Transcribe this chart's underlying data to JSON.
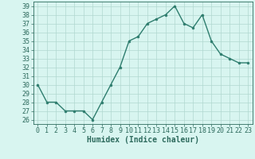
{
  "x": [
    0,
    1,
    2,
    3,
    4,
    5,
    6,
    7,
    8,
    9,
    10,
    11,
    12,
    13,
    14,
    15,
    16,
    17,
    18,
    19,
    20,
    21,
    22,
    23
  ],
  "y": [
    30,
    28,
    28,
    27,
    27,
    27,
    26,
    28,
    30,
    32,
    35,
    35.5,
    37,
    37.5,
    38,
    39,
    37,
    36.5,
    38,
    35,
    33.5,
    33,
    32.5,
    32.5
  ],
  "line_color": "#2e7d6e",
  "marker": "o",
  "marker_size": 2.0,
  "bg_color": "#d8f5f0",
  "grid_color": "#b0d8d0",
  "xlabel": "Humidex (Indice chaleur)",
  "ylim": [
    25.5,
    39.5
  ],
  "yticks": [
    26,
    27,
    28,
    29,
    30,
    31,
    32,
    33,
    34,
    35,
    36,
    37,
    38,
    39
  ],
  "xticks": [
    0,
    1,
    2,
    3,
    4,
    5,
    6,
    7,
    8,
    9,
    10,
    11,
    12,
    13,
    14,
    15,
    16,
    17,
    18,
    19,
    20,
    21,
    22,
    23
  ],
  "line_width": 1.0,
  "xlabel_fontsize": 7,
  "tick_fontsize": 6,
  "tick_color": "#2e6b5e",
  "axis_color": "#2e6b5e",
  "spine_color": "#2e6b5e"
}
